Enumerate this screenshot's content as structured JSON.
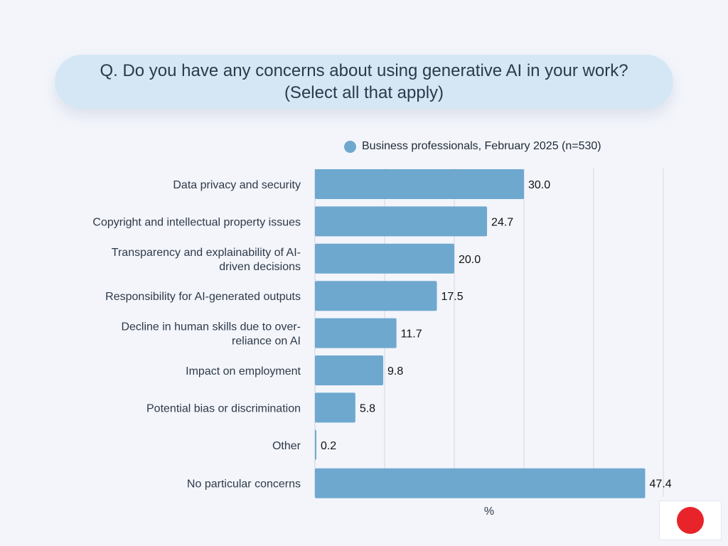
{
  "title": "Q. Do you have any concerns about using generative AI in your work? (Select all that apply)",
  "legend": {
    "label": "Business professionals, February 2025 (n=530)",
    "color": "#6ea8cf"
  },
  "flag": {
    "icon": "japan-flag-icon",
    "sun_color": "#e8232a"
  },
  "chart_data": {
    "type": "bar",
    "orientation": "horizontal",
    "categories": [
      [
        "Data privacy and security"
      ],
      [
        "Copyright and intellectual property issues"
      ],
      [
        "Transparency and explainability of AI-",
        "driven decisions"
      ],
      [
        "Responsibility for AI-generated outputs"
      ],
      [
        "Decline in human skills due to over-",
        "reliance on AI"
      ],
      [
        "Impact on employment"
      ],
      [
        "Potential bias or discrimination"
      ],
      [
        "Other"
      ],
      [
        "No particular concerns"
      ]
    ],
    "series": [
      {
        "name": "Business professionals, February 2025 (n=530)",
        "values": [
          30.0,
          24.7,
          20.0,
          17.5,
          11.7,
          9.8,
          5.8,
          0.2,
          47.4
        ],
        "value_labels": [
          "30.0",
          "24.7",
          "20.0",
          "17.5",
          "11.7",
          "9.8",
          "5.8",
          "0.2",
          "47.4"
        ],
        "color": "#6ea8cf"
      }
    ],
    "xlabel": "%",
    "xlim": [
      0,
      50
    ],
    "gridlines": [
      0,
      10,
      20,
      30,
      40,
      50
    ],
    "grid": true,
    "legend_position": "top-right"
  }
}
